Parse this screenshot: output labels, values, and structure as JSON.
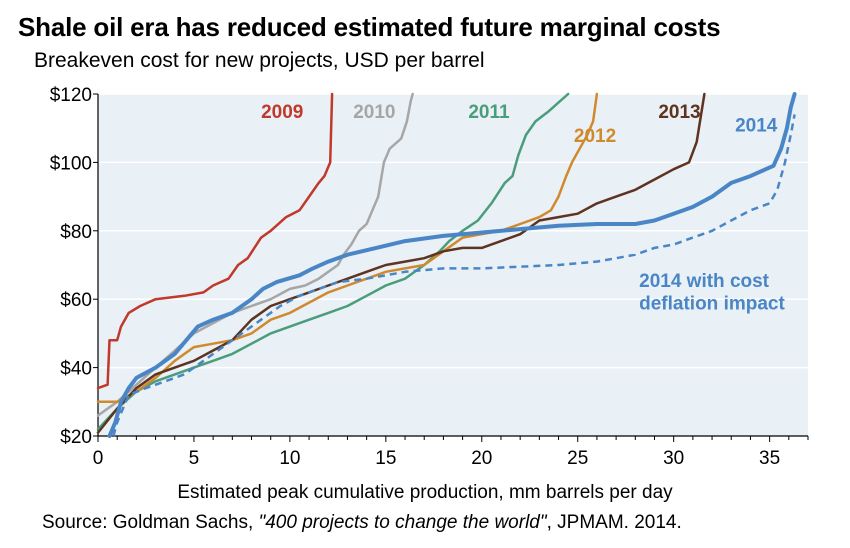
{
  "title": "Shale oil era has reduced estimated future marginal costs",
  "subtitle": "Breakeven cost for new projects, USD per barrel",
  "source": {
    "prefix": "Source: Goldman Sachs, ",
    "italic": "\"400 projects to change the world\"",
    "suffix": ",  JPMAM. 2014."
  },
  "colors": {
    "plot_background": "#e9f0f6",
    "grid": "#ffffff"
  },
  "chart_data": {
    "type": "line",
    "title": "Shale oil era has reduced estimated future marginal costs",
    "xlabel": "Estimated peak cumulative production, mm barrels per day",
    "ylabel": "",
    "xlim": [
      0,
      37
    ],
    "ylim": [
      20,
      120
    ],
    "xticks": [
      0,
      5,
      10,
      15,
      20,
      25,
      30,
      35
    ],
    "yticks": [
      20,
      40,
      60,
      80,
      100,
      120
    ],
    "ytick_labels": [
      "$20",
      "$40",
      "$60",
      "$80",
      "$100",
      "$120"
    ],
    "grid": true,
    "series": [
      {
        "name": "2009",
        "color": "#c0392b",
        "width": 2.5,
        "dash": false,
        "points": [
          [
            0,
            34
          ],
          [
            0.5,
            35
          ],
          [
            0.6,
            48
          ],
          [
            1.0,
            48
          ],
          [
            1.2,
            52
          ],
          [
            1.6,
            56
          ],
          [
            2.2,
            58
          ],
          [
            3,
            60
          ],
          [
            4.5,
            61
          ],
          [
            5.5,
            62
          ],
          [
            6,
            64
          ],
          [
            6.8,
            66
          ],
          [
            7.3,
            70
          ],
          [
            7.8,
            72
          ],
          [
            8.5,
            78
          ],
          [
            9,
            80
          ],
          [
            9.8,
            84
          ],
          [
            10.5,
            86
          ],
          [
            11,
            90
          ],
          [
            11.5,
            94
          ],
          [
            11.8,
            96
          ],
          [
            12.1,
            100
          ],
          [
            12.2,
            120
          ]
        ]
      },
      {
        "name": "2010",
        "color": "#a6a6a6",
        "width": 2.5,
        "dash": false,
        "points": [
          [
            0,
            26
          ],
          [
            1,
            30
          ],
          [
            2,
            35
          ],
          [
            3,
            40
          ],
          [
            4,
            45
          ],
          [
            5,
            50
          ],
          [
            6,
            53
          ],
          [
            7,
            56
          ],
          [
            8,
            58
          ],
          [
            9,
            60
          ],
          [
            10,
            63
          ],
          [
            10.8,
            64
          ],
          [
            11.5,
            66
          ],
          [
            12,
            68
          ],
          [
            12.5,
            70
          ],
          [
            12.8,
            73
          ],
          [
            13.2,
            76
          ],
          [
            13.6,
            80
          ],
          [
            14,
            82
          ],
          [
            14.3,
            86
          ],
          [
            14.6,
            90
          ],
          [
            14.9,
            100
          ],
          [
            15.2,
            104
          ],
          [
            15.8,
            107
          ],
          [
            16.1,
            112
          ],
          [
            16.3,
            118
          ],
          [
            16.4,
            120
          ]
        ]
      },
      {
        "name": "2011",
        "color": "#4a9d7a",
        "width": 2.5,
        "dash": false,
        "points": [
          [
            0,
            22
          ],
          [
            1,
            28
          ],
          [
            2,
            33
          ],
          [
            3,
            36
          ],
          [
            4,
            38
          ],
          [
            5,
            40
          ],
          [
            6,
            42
          ],
          [
            7,
            44
          ],
          [
            8,
            47
          ],
          [
            9,
            50
          ],
          [
            10,
            52
          ],
          [
            11,
            54
          ],
          [
            12,
            56
          ],
          [
            13,
            58
          ],
          [
            14,
            61
          ],
          [
            15,
            64
          ],
          [
            16,
            66
          ],
          [
            17,
            70
          ],
          [
            17.8,
            74
          ],
          [
            18.3,
            77
          ],
          [
            19,
            80
          ],
          [
            19.8,
            83
          ],
          [
            20.5,
            88
          ],
          [
            21.2,
            94
          ],
          [
            21.6,
            96
          ],
          [
            21.9,
            102
          ],
          [
            22.3,
            108
          ],
          [
            22.8,
            112
          ],
          [
            23.5,
            115
          ],
          [
            24.5,
            120
          ]
        ]
      },
      {
        "name": "2012",
        "color": "#d08a2e",
        "width": 2.5,
        "dash": false,
        "points": [
          [
            0,
            30
          ],
          [
            1,
            30
          ],
          [
            2,
            33
          ],
          [
            3,
            37
          ],
          [
            4,
            42
          ],
          [
            5,
            46
          ],
          [
            6,
            47
          ],
          [
            7,
            48
          ],
          [
            8,
            50
          ],
          [
            9,
            54
          ],
          [
            10,
            56
          ],
          [
            11,
            59
          ],
          [
            12,
            62
          ],
          [
            13,
            64
          ],
          [
            14,
            66
          ],
          [
            15,
            68
          ],
          [
            16,
            69
          ],
          [
            17,
            70
          ],
          [
            18,
            74
          ],
          [
            19,
            78
          ],
          [
            20,
            79
          ],
          [
            21,
            80
          ],
          [
            22,
            82
          ],
          [
            23,
            84
          ],
          [
            23.6,
            86
          ],
          [
            24,
            90
          ],
          [
            24.4,
            96
          ],
          [
            24.7,
            100
          ],
          [
            25.1,
            104
          ],
          [
            25.5,
            108
          ],
          [
            25.8,
            112
          ],
          [
            26.0,
            120
          ]
        ]
      },
      {
        "name": "2013",
        "color": "#5e3320",
        "width": 2.5,
        "dash": false,
        "points": [
          [
            0,
            21
          ],
          [
            1,
            28
          ],
          [
            2,
            34
          ],
          [
            3,
            38
          ],
          [
            4,
            40
          ],
          [
            5,
            42
          ],
          [
            6,
            45
          ],
          [
            7,
            48
          ],
          [
            8,
            54
          ],
          [
            9,
            58
          ],
          [
            10,
            60
          ],
          [
            11,
            62
          ],
          [
            12,
            64
          ],
          [
            13,
            66
          ],
          [
            14,
            68
          ],
          [
            15,
            70
          ],
          [
            16,
            71
          ],
          [
            17,
            72
          ],
          [
            18,
            74
          ],
          [
            19,
            75
          ],
          [
            20,
            75
          ],
          [
            21,
            77
          ],
          [
            22,
            79
          ],
          [
            22.5,
            81
          ],
          [
            23,
            83
          ],
          [
            24,
            84
          ],
          [
            25,
            85
          ],
          [
            26,
            88
          ],
          [
            27,
            90
          ],
          [
            28,
            92
          ],
          [
            29,
            95
          ],
          [
            30,
            98
          ],
          [
            30.8,
            100
          ],
          [
            31.2,
            106
          ],
          [
            31.6,
            120
          ]
        ]
      },
      {
        "name": "2014",
        "color": "#4a86c6",
        "width": 4.0,
        "dash": false,
        "points": [
          [
            0.6,
            20
          ],
          [
            0.9,
            24
          ],
          [
            1.2,
            30
          ],
          [
            1.6,
            34
          ],
          [
            2,
            37
          ],
          [
            3,
            40
          ],
          [
            4,
            44
          ],
          [
            4.6,
            48
          ],
          [
            5.2,
            52
          ],
          [
            6,
            54
          ],
          [
            7,
            56
          ],
          [
            7.5,
            58
          ],
          [
            8,
            60
          ],
          [
            8.6,
            63
          ],
          [
            9.3,
            65
          ],
          [
            10.5,
            67
          ],
          [
            11.2,
            69
          ],
          [
            12,
            71
          ],
          [
            13,
            73
          ],
          [
            14.5,
            75
          ],
          [
            16,
            77
          ],
          [
            18,
            78.5
          ],
          [
            20,
            79.5
          ],
          [
            22,
            80.5
          ],
          [
            24,
            81.5
          ],
          [
            26,
            82
          ],
          [
            28,
            82
          ],
          [
            29,
            83
          ],
          [
            30,
            85
          ],
          [
            31,
            87
          ],
          [
            32,
            90
          ],
          [
            33,
            94
          ],
          [
            34,
            96
          ],
          [
            34.8,
            98
          ],
          [
            35.2,
            99
          ],
          [
            35.6,
            104
          ],
          [
            35.9,
            110
          ],
          [
            36.1,
            116
          ],
          [
            36.3,
            120
          ]
        ]
      },
      {
        "name": "2014 with cost deflation impact",
        "color": "#4a86c6",
        "width": 2.5,
        "dash": true,
        "points": [
          [
            0.8,
            20
          ],
          [
            1,
            24
          ],
          [
            1.3,
            28
          ],
          [
            1.6,
            32
          ],
          [
            2.5,
            34
          ],
          [
            3.5,
            36
          ],
          [
            4.5,
            38
          ],
          [
            5.5,
            42
          ],
          [
            6.5,
            46
          ],
          [
            7.5,
            50
          ],
          [
            8.5,
            54
          ],
          [
            9.5,
            58
          ],
          [
            10.5,
            61
          ],
          [
            11.5,
            63
          ],
          [
            12.5,
            65
          ],
          [
            14,
            66
          ],
          [
            15,
            67
          ],
          [
            16,
            68
          ],
          [
            17,
            68.5
          ],
          [
            18,
            69
          ],
          [
            20,
            69
          ],
          [
            22,
            69.5
          ],
          [
            24,
            70
          ],
          [
            26,
            71
          ],
          [
            27,
            72
          ],
          [
            28,
            73
          ],
          [
            29,
            75
          ],
          [
            30,
            76
          ],
          [
            31,
            78
          ],
          [
            32,
            80
          ],
          [
            33,
            83
          ],
          [
            34,
            86
          ],
          [
            35,
            88
          ],
          [
            35.4,
            92
          ],
          [
            35.8,
            100
          ],
          [
            36.1,
            108
          ],
          [
            36.3,
            114
          ]
        ]
      }
    ],
    "annotations": [
      {
        "text": "2009",
        "series": "2009",
        "x": 8.5,
        "y": 113
      },
      {
        "text": "2010",
        "series": "2010",
        "x": 13.3,
        "y": 113
      },
      {
        "text": "2011",
        "series": "2011",
        "x": 19.3,
        "y": 113
      },
      {
        "text": "2012",
        "series": "2012",
        "x": 24.8,
        "y": 106
      },
      {
        "text": "2013",
        "series": "2013",
        "x": 29.2,
        "y": 113
      },
      {
        "text": "2014",
        "series": "2014",
        "x": 33.2,
        "y": 109
      },
      {
        "text": "2014 with cost",
        "series": "2014 with cost deflation impact",
        "x": 28.2,
        "y": 63.5
      },
      {
        "text": "deflation impact",
        "series": "2014 with cost deflation impact",
        "x": 28.2,
        "y": 57
      }
    ]
  }
}
